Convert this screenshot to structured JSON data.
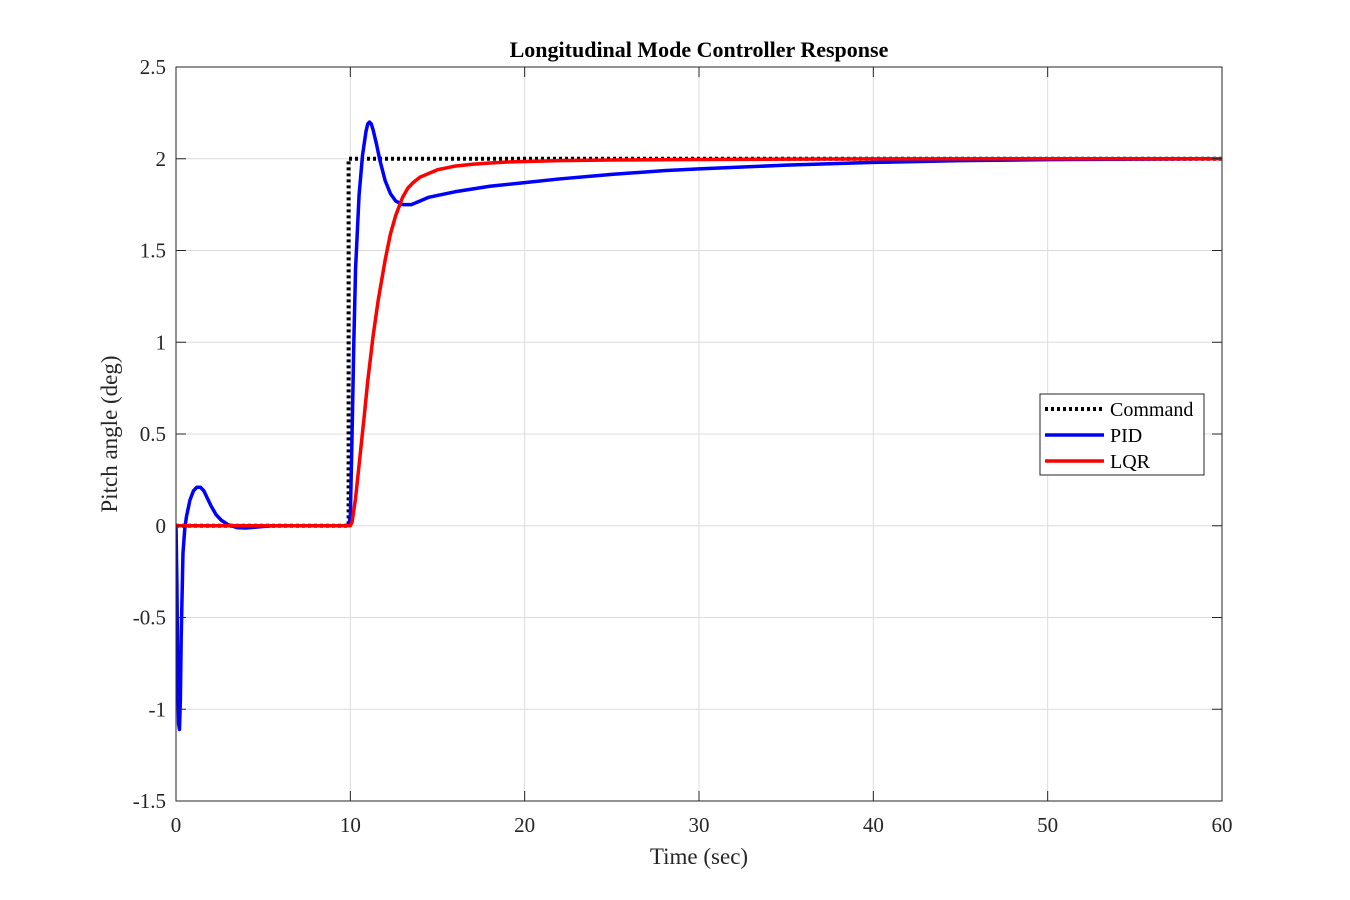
{
  "chart_data": {
    "type": "line",
    "title": "Longitudinal Mode Controller Response",
    "xlabel": "Time (sec)",
    "ylabel": "Pitch angle (deg)",
    "xlim": [
      0,
      60
    ],
    "ylim": [
      -1.5,
      2.5
    ],
    "xticks": [
      0,
      10,
      20,
      30,
      40,
      50,
      60
    ],
    "yticks": [
      -1.5,
      -1,
      -0.5,
      0,
      0.5,
      1,
      1.5,
      2,
      2.5
    ],
    "xtick_labels": [
      "0",
      "10",
      "20",
      "30",
      "40",
      "50",
      "60"
    ],
    "ytick_labels": [
      "-1.5",
      "-1",
      "-0.5",
      "0",
      "0.5",
      "1",
      "1.5",
      "2",
      "2.5"
    ],
    "grid": true,
    "legend_position": "right, mid-height",
    "series": [
      {
        "name": "Command",
        "color": "#000000",
        "style": "dotted",
        "x": [
          0,
          9.9,
          9.9,
          60
        ],
        "y": [
          0,
          0,
          2,
          2
        ]
      },
      {
        "name": "PID",
        "color": "#0000ff",
        "style": "solid",
        "x": [
          0,
          0.05,
          0.1,
          0.15,
          0.2,
          0.25,
          0.3,
          0.4,
          0.5,
          0.6,
          0.8,
          1.0,
          1.2,
          1.4,
          1.6,
          1.8,
          2.0,
          2.3,
          2.6,
          3.0,
          3.5,
          4.0,
          4.5,
          5.0,
          5.5,
          6.0,
          7.0,
          8.0,
          9.0,
          9.9,
          10.0,
          10.1,
          10.2,
          10.3,
          10.5,
          10.7,
          10.9,
          11.0,
          11.1,
          11.2,
          11.3,
          11.5,
          11.7,
          12.0,
          12.3,
          12.6,
          13.0,
          13.5,
          14.0,
          14.5,
          15.0,
          16.0,
          17.0,
          18.0,
          20.0,
          22.0,
          25.0,
          28.0,
          30.0,
          35.0,
          40.0,
          45.0,
          50.0,
          55.0,
          60.0
        ],
        "y": [
          0,
          -0.3,
          -0.8,
          -1.08,
          -1.11,
          -0.95,
          -0.6,
          -0.15,
          -0.02,
          0.05,
          0.14,
          0.19,
          0.21,
          0.21,
          0.19,
          0.15,
          0.11,
          0.06,
          0.03,
          0.005,
          -0.01,
          -0.012,
          -0.008,
          -0.004,
          -0.001,
          0.0,
          0.0,
          0.0,
          0.0,
          0.0,
          0.05,
          0.5,
          1.0,
          1.4,
          1.8,
          2.02,
          2.15,
          2.19,
          2.2,
          2.19,
          2.16,
          2.08,
          1.99,
          1.88,
          1.81,
          1.77,
          1.75,
          1.75,
          1.77,
          1.79,
          1.8,
          1.82,
          1.835,
          1.85,
          1.87,
          1.89,
          1.915,
          1.935,
          1.945,
          1.965,
          1.98,
          1.99,
          1.995,
          1.998,
          2.0
        ]
      },
      {
        "name": "LQR",
        "color": "#ff0000",
        "style": "solid",
        "x": [
          0,
          1,
          2,
          3,
          4,
          5,
          6,
          7,
          8,
          9,
          9.9,
          10.0,
          10.1,
          10.3,
          10.5,
          10.8,
          11.0,
          11.3,
          11.6,
          12.0,
          12.3,
          12.6,
          13.0,
          13.3,
          13.6,
          14.0,
          14.5,
          15.0,
          15.5,
          16.0,
          17.0,
          18.0,
          19.0,
          20.0,
          22.0,
          25.0,
          30.0,
          35.0,
          40.0,
          50.0,
          60.0
        ],
        "y": [
          0,
          0,
          0,
          0,
          0,
          0,
          0,
          0,
          0,
          0,
          0,
          0.0,
          0.02,
          0.15,
          0.33,
          0.6,
          0.79,
          1.03,
          1.23,
          1.45,
          1.59,
          1.69,
          1.79,
          1.84,
          1.87,
          1.9,
          1.92,
          1.94,
          1.95,
          1.96,
          1.97,
          1.977,
          1.982,
          1.985,
          1.99,
          1.993,
          1.996,
          1.998,
          1.999,
          2.0,
          2.0
        ]
      }
    ]
  }
}
